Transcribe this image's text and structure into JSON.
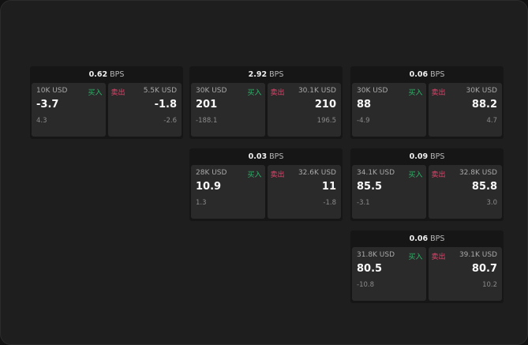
{
  "labels": {
    "unit": "BPS",
    "buy": "买入",
    "sell": "卖出"
  },
  "colors": {
    "buy": "#2fb36a",
    "sell": "#e0456b"
  },
  "widgets": [
    {
      "spread": "0.62",
      "bid_size": "10K USD",
      "bid": "-3.7",
      "bid_change": "4.3",
      "ask_size": "5.5K USD",
      "ask": "-1.8",
      "ask_change": "-2.6"
    },
    {
      "spread": "2.92",
      "bid_size": "30K USD",
      "bid": "201",
      "bid_change": "-188.1",
      "ask_size": "30.1K USD",
      "ask": "210",
      "ask_change": "196.5"
    },
    {
      "spread": "0.06",
      "bid_size": "30K USD",
      "bid": "88",
      "bid_change": "-4.9",
      "ask_size": "30K USD",
      "ask": "88.2",
      "ask_change": "4.7"
    },
    {
      "spread": "0.03",
      "bid_size": "28K USD",
      "bid": "10.9",
      "bid_change": "1.3",
      "ask_size": "32.6K USD",
      "ask": "11",
      "ask_change": "-1.8"
    },
    {
      "spread": "0.09",
      "bid_size": "34.1K USD",
      "bid": "85.5",
      "bid_change": "-3.1",
      "ask_size": "32.8K USD",
      "ask": "85.8",
      "ask_change": "3.0"
    },
    {
      "spread": "0.06",
      "bid_size": "31.8K USD",
      "bid": "80.5",
      "bid_change": "-10.8",
      "ask_size": "39.1K USD",
      "ask": "80.7",
      "ask_change": "10.2"
    }
  ]
}
